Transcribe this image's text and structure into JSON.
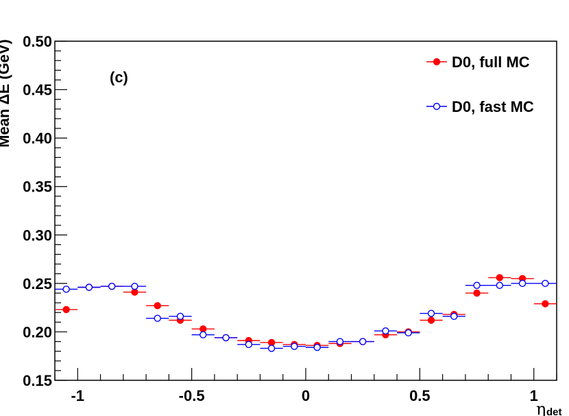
{
  "chart_data": {
    "type": "scatter",
    "title": "",
    "panel_label": "(c)",
    "xlabel": "η",
    "xlabel_sub": "det",
    "ylabel": "Mean ΔE (GeV)",
    "xlim": [
      -1.1,
      1.1
    ],
    "ylim": [
      0.15,
      0.5
    ],
    "grid": false,
    "legend_position": "top-right",
    "x_ticks": [
      {
        "value": -1,
        "label": "-1"
      },
      {
        "value": -0.5,
        "label": "-0.5"
      },
      {
        "value": 0,
        "label": "0"
      },
      {
        "value": 0.5,
        "label": "0.5"
      },
      {
        "value": 1,
        "label": "1"
      }
    ],
    "y_ticks": [
      {
        "value": 0.15,
        "label": "0.15"
      },
      {
        "value": 0.2,
        "label": "0.20"
      },
      {
        "value": 0.25,
        "label": "0.25"
      },
      {
        "value": 0.3,
        "label": "0.30"
      },
      {
        "value": 0.35,
        "label": "0.35"
      },
      {
        "value": 0.4,
        "label": "0.40"
      },
      {
        "value": 0.45,
        "label": "0.45"
      },
      {
        "value": 0.5,
        "label": "0.50"
      }
    ],
    "bin_half_width": 0.05,
    "x": [
      -1.05,
      -0.95,
      -0.85,
      -0.75,
      -0.65,
      -0.55,
      -0.45,
      -0.35,
      -0.25,
      -0.15,
      -0.05,
      0.05,
      0.15,
      0.25,
      0.35,
      0.45,
      0.55,
      0.65,
      0.75,
      0.85,
      0.95,
      1.05
    ],
    "series": [
      {
        "name": "D0, full MC",
        "color": "#ff0000",
        "marker": "filled-circle",
        "values": [
          0.223,
          0.246,
          0.247,
          0.241,
          0.227,
          0.212,
          0.203,
          0.194,
          0.191,
          0.189,
          0.187,
          0.186,
          0.188,
          0.19,
          0.197,
          0.2,
          0.212,
          0.218,
          0.24,
          0.256,
          0.255,
          0.229
        ]
      },
      {
        "name": "D0, fast MC",
        "color": "#0000ff",
        "marker": "open-circle",
        "values": [
          0.244,
          0.246,
          0.247,
          0.247,
          0.214,
          0.216,
          0.197,
          0.194,
          0.187,
          0.183,
          0.185,
          0.184,
          0.19,
          0.19,
          0.201,
          0.199,
          0.219,
          0.216,
          0.248,
          0.248,
          0.25,
          0.25
        ]
      }
    ]
  }
}
